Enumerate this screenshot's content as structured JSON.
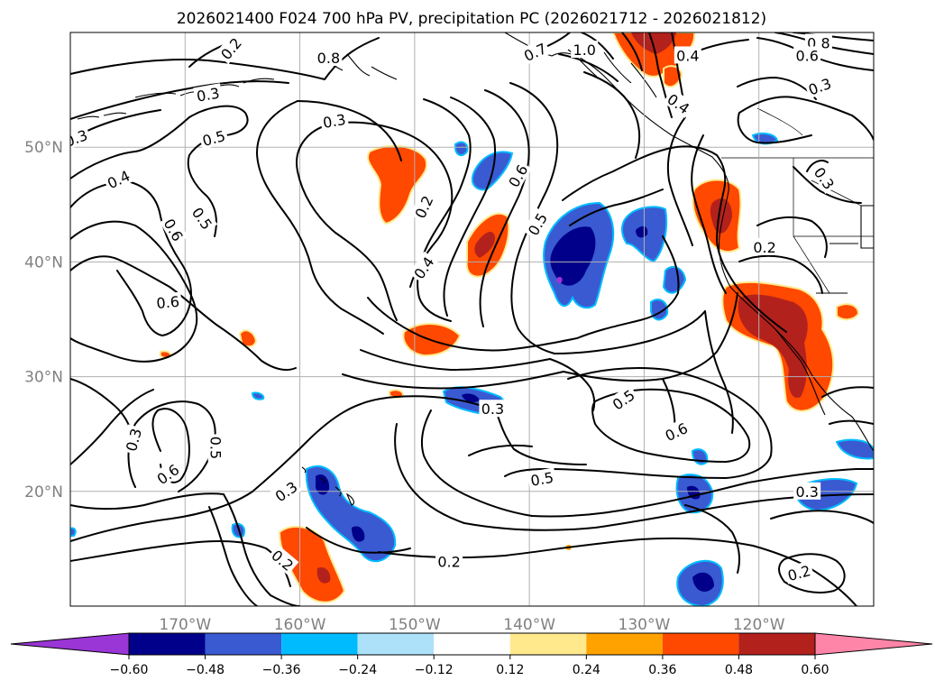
{
  "title": "2026021400 F024 700 hPa PV, precipitation PC (2026021712 - 2026021812)",
  "map": {
    "lon_range": [
      -180,
      -110
    ],
    "lat_range": [
      10,
      60
    ],
    "lon_ticks": [
      {
        "value": -170,
        "label": "170°W"
      },
      {
        "value": -160,
        "label": "160°W"
      },
      {
        "value": -150,
        "label": "150°W"
      },
      {
        "value": -140,
        "label": "140°W"
      },
      {
        "value": -130,
        "label": "130°W"
      },
      {
        "value": -120,
        "label": "120°W"
      }
    ],
    "lat_ticks": [
      {
        "value": 20,
        "label": "20°N"
      },
      {
        "value": 30,
        "label": "30°N"
      },
      {
        "value": 40,
        "label": "40°N"
      },
      {
        "value": 50,
        "label": "50°N"
      }
    ],
    "grid": true,
    "contour_labels": [
      {
        "text": "0.2",
        "lon": -166,
        "lat": 58.6,
        "angle": -50
      },
      {
        "text": "0.3",
        "lon": -168,
        "lat": 54.6,
        "angle": -10
      },
      {
        "text": "0.5",
        "lon": -167.5,
        "lat": 50.8,
        "angle": -15
      },
      {
        "text": "0.3",
        "lon": -179.5,
        "lat": 50.8,
        "angle": -20
      },
      {
        "text": "0.4",
        "lon": -175.8,
        "lat": 47.2,
        "angle": -25
      },
      {
        "text": "0.6",
        "lon": -171,
        "lat": 42.8,
        "angle": 60
      },
      {
        "text": "0.5",
        "lon": -168.5,
        "lat": 43.8,
        "angle": 55
      },
      {
        "text": "0.6",
        "lon": -171.5,
        "lat": 36.5,
        "angle": -5
      },
      {
        "text": "0.3",
        "lon": -174.5,
        "lat": 24.5,
        "angle": -75
      },
      {
        "text": "0.6",
        "lon": -171.5,
        "lat": 21.5,
        "angle": -35
      },
      {
        "text": "0.5",
        "lon": -167.3,
        "lat": 23.8,
        "angle": 90
      },
      {
        "text": "0.3",
        "lon": -161.2,
        "lat": 20.0,
        "angle": -35
      },
      {
        "text": "0.2",
        "lon": -161.5,
        "lat": 14.0,
        "angle": 40
      },
      {
        "text": "0.8",
        "lon": -157.5,
        "lat": 57.8,
        "angle": 0
      },
      {
        "text": "0.3",
        "lon": -157,
        "lat": 52.3,
        "angle": -10
      },
      {
        "text": "0.2",
        "lon": -149.2,
        "lat": 44.8,
        "angle": -65
      },
      {
        "text": "0.4",
        "lon": -149.2,
        "lat": 39.5,
        "angle": -55
      },
      {
        "text": "0.6",
        "lon": -141,
        "lat": 47.5,
        "angle": -60
      },
      {
        "text": "0.5",
        "lon": -139.3,
        "lat": 43.3,
        "angle": -60
      },
      {
        "text": "0.7",
        "lon": -139.5,
        "lat": 58.3,
        "angle": -25
      },
      {
        "text": "1.0",
        "lon": -135.2,
        "lat": 58.5,
        "angle": 0
      },
      {
        "text": "0.4",
        "lon": -126.2,
        "lat": 58.0,
        "angle": 0
      },
      {
        "text": "0.4",
        "lon": -127,
        "lat": 53.8,
        "angle": 35
      },
      {
        "text": "0.8",
        "lon": -114.8,
        "lat": 59.1,
        "angle": 0
      },
      {
        "text": "0.6",
        "lon": -115.8,
        "lat": 58.0,
        "angle": 0
      },
      {
        "text": "0.3",
        "lon": -114.7,
        "lat": 55.3,
        "angle": -20
      },
      {
        "text": "0.3",
        "lon": -114.3,
        "lat": 47.3,
        "angle": 55
      },
      {
        "text": "0.2",
        "lon": -119.5,
        "lat": 41.3,
        "angle": 0
      },
      {
        "text": "0.3",
        "lon": -143.2,
        "lat": 27.2,
        "angle": 0
      },
      {
        "text": "0.5",
        "lon": -131.8,
        "lat": 28.0,
        "angle": -35
      },
      {
        "text": "0.6",
        "lon": -127.2,
        "lat": 25.2,
        "angle": -25
      },
      {
        "text": "0.5",
        "lon": -138.9,
        "lat": 21.1,
        "angle": -10
      },
      {
        "text": "0.3",
        "lon": -115.8,
        "lat": 20.0,
        "angle": 0
      },
      {
        "text": "0.2",
        "lon": -116.5,
        "lat": 12.9,
        "angle": -15
      },
      {
        "text": "0.2",
        "lon": -147.0,
        "lat": 13.9,
        "angle": 0
      }
    ]
  },
  "colorbar": {
    "tick_labels": [
      "−0.60",
      "−0.48",
      "−0.36",
      "−0.24",
      "−0.12",
      "0.12",
      "0.24",
      "0.36",
      "0.48",
      "0.60"
    ],
    "colors": [
      "#9a35d6",
      "#00008a",
      "#3a5ad2",
      "#00bcff",
      "#ade1fa",
      "#ffffff",
      "#ffe98c",
      "#ffa200",
      "#ff4800",
      "#b3211c",
      "#ff85a8"
    ]
  }
}
